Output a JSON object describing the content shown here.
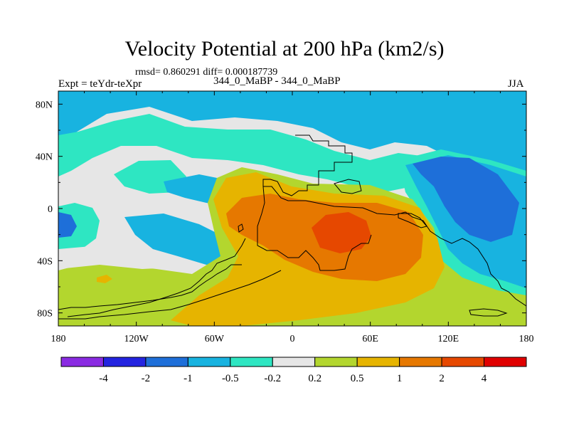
{
  "header": {
    "title": "Velocity Potential at 200 hPa (km2/s)",
    "stats": "rmsd= 0.860291 diff= 0.000187739",
    "experiment": "Expt = teYdr-teXpr",
    "runs": "344_0_MaBP - 344_0_MaBP",
    "season": "JJA"
  },
  "colors": {
    "below_-4": "#8a2be2",
    "-4_-2": "#2424e0",
    "-2_-1": "#1e6fd9",
    "-1_-0.5": "#18b3e0",
    "-0.5_-0.2": "#2ee6c2",
    "-0.2_0.2": "#e6e6e6",
    "0.2_0.5": "#b3d62e",
    "0.5_1": "#e6b400",
    "1_2": "#e67800",
    "2_4": "#e64800",
    "above_4": "#e00000"
  },
  "chart_data": {
    "type": "heatmap",
    "title": "Velocity Potential at 200 hPa (km2/s)",
    "projection": "cylindrical equidistant",
    "xlim": [
      -180,
      180
    ],
    "ylim": [
      -90,
      90
    ],
    "x_ticks": [
      {
        "value": -180,
        "label": "180"
      },
      {
        "value": -120,
        "label": "120W"
      },
      {
        "value": -60,
        "label": "60W"
      },
      {
        "value": 0,
        "label": "0"
      },
      {
        "value": 60,
        "label": "60E"
      },
      {
        "value": 120,
        "label": "120E"
      },
      {
        "value": 180,
        "label": "180"
      }
    ],
    "y_ticks": [
      {
        "value": 80,
        "label": "80N"
      },
      {
        "value": 40,
        "label": "40N"
      },
      {
        "value": 0,
        "label": "0"
      },
      {
        "value": -40,
        "label": "40S"
      },
      {
        "value": -80,
        "label": "80S"
      }
    ],
    "colorbar": {
      "levels": [
        -4,
        -2,
        -1,
        -0.5,
        -0.2,
        0.2,
        0.5,
        1,
        2,
        4
      ],
      "labels": [
        "-4",
        "-2",
        "-1",
        "-0.5",
        "-0.2",
        "0.2",
        "0.5",
        "1",
        "2",
        "4"
      ],
      "colors": [
        "#8a2be2",
        "#2424e0",
        "#1e6fd9",
        "#18b3e0",
        "#2ee6c2",
        "#e6e6e6",
        "#b3d62e",
        "#e6b400",
        "#e67800",
        "#e64800",
        "#e00000"
      ]
    },
    "features": [
      {
        "name": "tropical-positive-maximum",
        "lon": 35,
        "lat": -15,
        "value": 3
      },
      {
        "name": "western-pacific-negative",
        "lon": 140,
        "lat": 15,
        "value": -1.5
      },
      {
        "name": "eastern-pacific-negative",
        "lon": -165,
        "lat": -10,
        "value": -1
      },
      {
        "name": "northern-high-latitude-band",
        "lon": 0,
        "lat": 75,
        "value": -0.7
      },
      {
        "name": "southern-ocean-positive",
        "lon": -60,
        "lat": -75,
        "value": 0.6
      }
    ]
  }
}
